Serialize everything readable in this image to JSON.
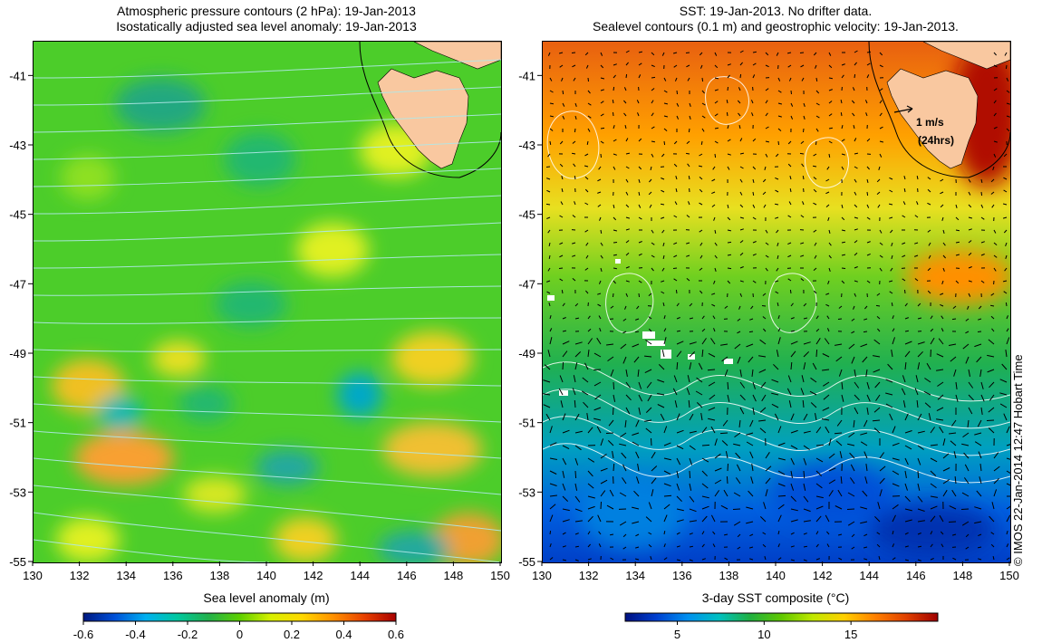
{
  "left": {
    "title_line1": "Atmospheric pressure contours (2 hPa): 19-Jan-2013",
    "title_line2": "Isostatically adjusted sea level anomaly: 19-Jan-2013",
    "xlabel": "Sea level anomaly (m)",
    "colorbar": {
      "ticks": [
        "-0.6",
        "-0.4",
        "-0.2",
        "0",
        "0.2",
        "0.4",
        "0.6"
      ],
      "tick_values": [
        -0.6,
        -0.4,
        -0.2,
        0,
        0.2,
        0.4,
        0.6
      ],
      "range": [
        -0.6,
        0.6
      ]
    }
  },
  "right": {
    "title_line1": "SST: 19-Jan-2013. No drifter data.",
    "title_line2": "Sealevel contours (0.1 m) and geostrophic velocity: 19-Jan-2013.",
    "xlabel": "3-day SST composite (°C)",
    "scale_label_1": "1 m/s",
    "scale_label_2": "(24hrs)",
    "colorbar": {
      "ticks": [
        "5",
        "10",
        "15"
      ],
      "tick_values": [
        5,
        10,
        15
      ],
      "range": [
        2,
        20
      ]
    }
  },
  "axes": {
    "lon_ticks": [
      "130",
      "132",
      "134",
      "136",
      "138",
      "140",
      "142",
      "144",
      "146",
      "148",
      "150"
    ],
    "lon_values": [
      130,
      132,
      134,
      136,
      138,
      140,
      142,
      144,
      146,
      148,
      150
    ],
    "lat_ticks": [
      "-41",
      "-43",
      "-45",
      "-47",
      "-49",
      "-51",
      "-53",
      "-55"
    ],
    "lat_values": [
      -41,
      -43,
      -45,
      -47,
      -49,
      -51,
      -53,
      -55
    ],
    "lon_range": [
      130,
      150
    ],
    "lat_range": [
      -55,
      -40
    ]
  },
  "copyright": "© IMOS 22-Jan-2014 12:47 Hobart Time",
  "colors": {
    "land": "#f9c8a0",
    "ssla_scale": [
      "#001880",
      "#0050d8",
      "#00b0f0",
      "#00c8a0",
      "#22b14c",
      "#5dd000",
      "#d8f000",
      "#ffd800",
      "#ff9000",
      "#e84000",
      "#a80000"
    ],
    "sst_scale": [
      "#001080",
      "#0040d0",
      "#0090f0",
      "#00c0c0",
      "#20b040",
      "#60c800",
      "#c0e800",
      "#ffd000",
      "#ff8000",
      "#e04000",
      "#a00000"
    ]
  }
}
